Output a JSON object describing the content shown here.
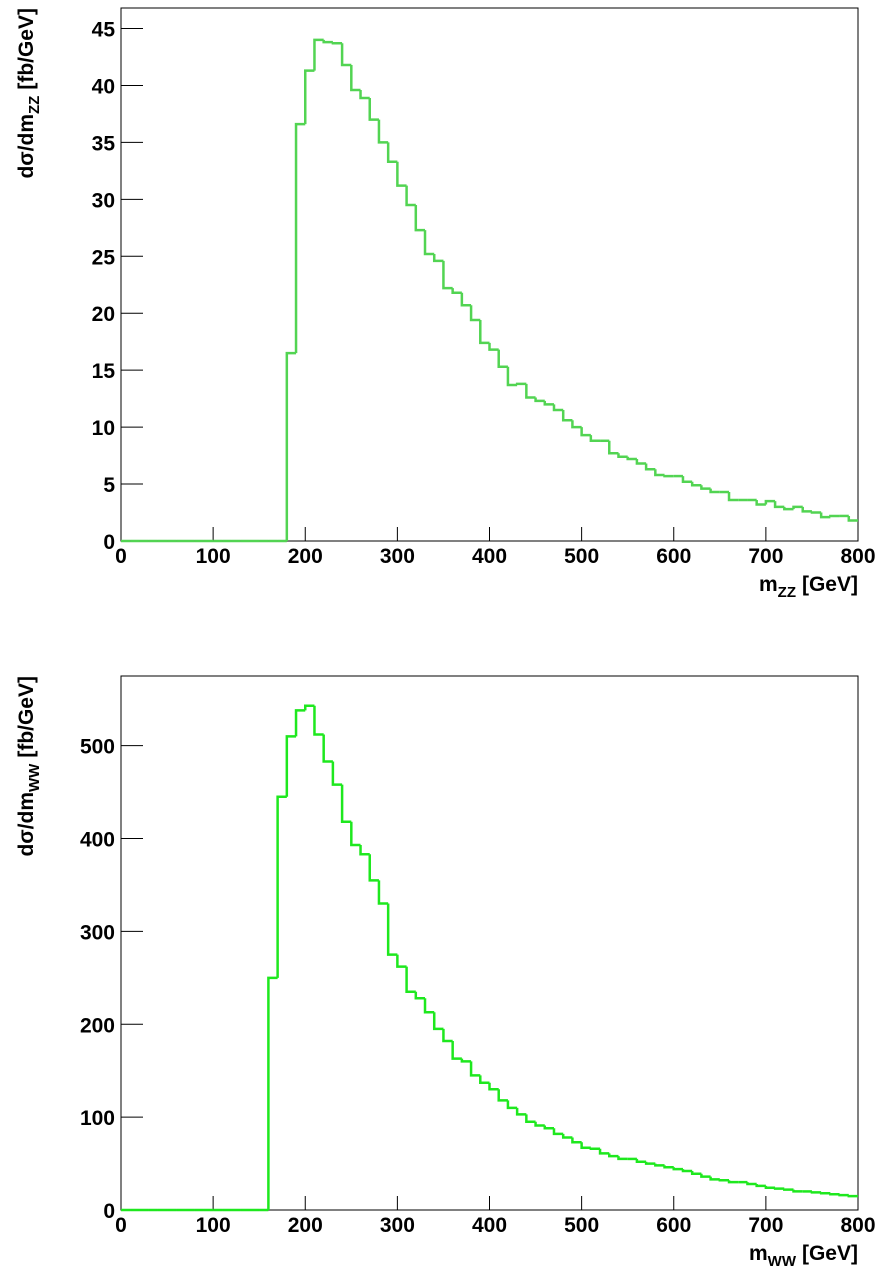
{
  "chart_data": [
    {
      "type": "histogram",
      "color": "#52d452",
      "xlim": [
        0,
        800
      ],
      "ylim": [
        0,
        46.8
      ],
      "xticks": [
        0,
        100,
        200,
        300,
        400,
        500,
        600,
        700,
        800
      ],
      "yticks": [
        0,
        5,
        10,
        15,
        20,
        25,
        30,
        35,
        40,
        45
      ],
      "xlabel": {
        "text": "m",
        "sub": "ZZ",
        "suffix": "[GeV]"
      },
      "ylabel": {
        "text": "dσ/dm",
        "sub": "ZZ",
        "suffix": "[fb/GeV]"
      },
      "bins": [
        0,
        10,
        20,
        30,
        40,
        50,
        60,
        70,
        80,
        90,
        100,
        110,
        120,
        130,
        140,
        150,
        160,
        170,
        180,
        190,
        200,
        210,
        220,
        230,
        240,
        250,
        260,
        270,
        280,
        290,
        300,
        310,
        320,
        330,
        340,
        350,
        360,
        370,
        380,
        390,
        400,
        410,
        420,
        430,
        440,
        450,
        460,
        470,
        480,
        490,
        500,
        510,
        520,
        530,
        540,
        550,
        560,
        570,
        580,
        590,
        600,
        610,
        620,
        630,
        640,
        650,
        660,
        670,
        680,
        690,
        700,
        710,
        720,
        730,
        740,
        750,
        760,
        770,
        780,
        790,
        800
      ],
      "values": [
        0,
        0,
        0,
        0,
        0,
        0,
        0,
        0,
        0,
        0,
        0,
        0,
        0,
        0,
        0,
        0,
        0,
        0,
        16.5,
        36.6,
        41.3,
        44.0,
        43.8,
        43.7,
        41.8,
        39.6,
        38.9,
        37.0,
        35.0,
        33.3,
        31.2,
        29.5,
        27.3,
        25.2,
        24.6,
        22.2,
        21.8,
        20.7,
        19.4,
        17.4,
        16.8,
        15.3,
        13.7,
        13.8,
        12.6,
        12.3,
        12.0,
        11.5,
        10.6,
        10.0,
        9.3,
        8.8,
        8.8,
        7.7,
        7.4,
        7.2,
        6.8,
        6.3,
        5.8,
        5.7,
        5.7,
        5.2,
        4.9,
        4.6,
        4.3,
        4.3,
        3.6,
        3.6,
        3.6,
        3.2,
        3.5,
        3.0,
        2.8,
        3.0,
        2.6,
        2.5,
        2.1,
        2.2,
        2.2,
        1.8
      ]
    },
    {
      "type": "histogram",
      "color": "#1ee81e",
      "xlim": [
        0,
        800
      ],
      "ylim": [
        0,
        575
      ],
      "xticks": [
        0,
        100,
        200,
        300,
        400,
        500,
        600,
        700,
        800
      ],
      "yticks": [
        0,
        100,
        200,
        300,
        400,
        500
      ],
      "xlabel": {
        "text": "m",
        "sub": "WW",
        "suffix": "[GeV]"
      },
      "ylabel": {
        "text": "dσ/dm",
        "sub": "WW",
        "suffix": "[fb/GeV]"
      },
      "bins": [
        0,
        10,
        20,
        30,
        40,
        50,
        60,
        70,
        80,
        90,
        100,
        110,
        120,
        130,
        140,
        150,
        160,
        170,
        180,
        190,
        200,
        210,
        220,
        230,
        240,
        250,
        260,
        270,
        280,
        290,
        300,
        310,
        320,
        330,
        340,
        350,
        360,
        370,
        380,
        390,
        400,
        410,
        420,
        430,
        440,
        450,
        460,
        470,
        480,
        490,
        500,
        510,
        520,
        530,
        540,
        550,
        560,
        570,
        580,
        590,
        600,
        610,
        620,
        630,
        640,
        650,
        660,
        670,
        680,
        690,
        700,
        710,
        720,
        730,
        740,
        750,
        760,
        770,
        780,
        790,
        800
      ],
      "values": [
        0,
        0,
        0,
        0,
        0,
        0,
        0,
        0,
        0,
        0,
        0,
        0,
        0,
        0,
        0,
        0,
        250,
        445,
        510,
        538,
        543,
        512,
        483,
        458,
        418,
        393,
        383,
        355,
        330,
        275,
        262,
        235,
        228,
        213,
        195,
        182,
        163,
        160,
        145,
        137,
        130,
        118,
        110,
        103,
        95,
        91,
        88,
        82,
        78,
        73,
        67,
        66,
        61,
        58,
        55,
        55,
        52,
        50,
        48,
        46,
        44,
        42,
        39,
        36,
        33,
        32,
        30,
        30,
        28,
        26,
        24,
        23,
        22,
        20,
        20,
        19,
        18,
        17,
        16,
        15
      ]
    }
  ]
}
